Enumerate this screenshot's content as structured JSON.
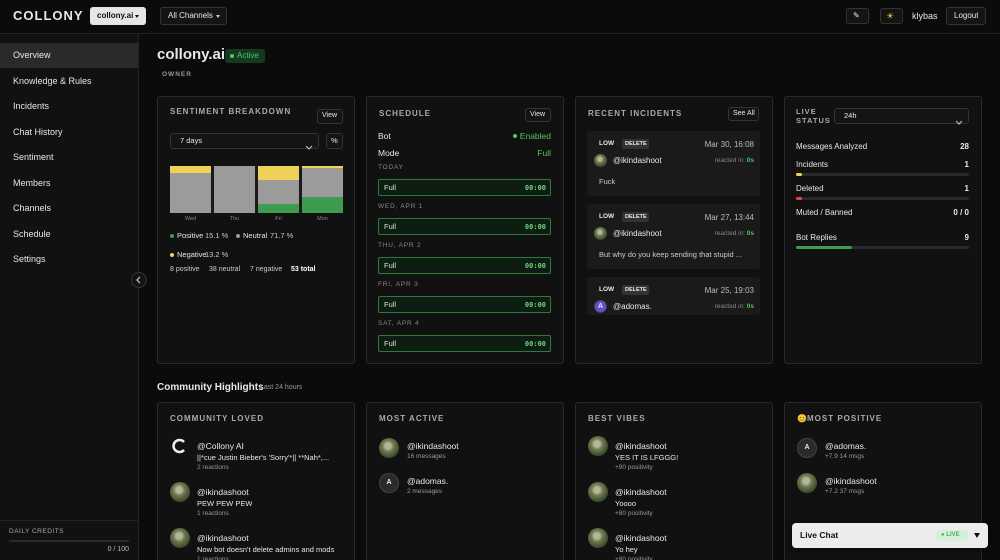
{
  "topbar": {
    "logo": "COLLONY",
    "workspace": "collony.ai",
    "channel_filter": "All Channels",
    "edit_icon": "✎",
    "theme_icon": "☀",
    "user": "klybas",
    "logout": "Logout"
  },
  "sidebar": {
    "items": [
      "Overview",
      "Knowledge & Rules",
      "Incidents",
      "Chat History",
      "Sentiment",
      "Members",
      "Channels",
      "Schedule",
      "Settings"
    ],
    "credits_label": "DAILY CREDITS",
    "credits": "0 / 100"
  },
  "header": {
    "title": "collony.ai",
    "status": "Active",
    "role": "OWNER"
  },
  "sentiment": {
    "title": "SENTIMENT BREAKDOWN",
    "view": "View",
    "range": "7 days",
    "unit_toggle": "%",
    "chart_data": {
      "type": "bar",
      "stacked": true,
      "categories": [
        "Wed",
        "Thu",
        "Fri",
        "Mon"
      ],
      "series": [
        {
          "name": "Positive",
          "color": "#3e9b4f",
          "values": [
            0,
            0,
            19,
            34
          ],
          "share": "15.1 %"
        },
        {
          "name": "Neutral",
          "color": "#9b9b9b",
          "values": [
            85,
            100,
            51,
            62
          ],
          "share": "71.7 %"
        },
        {
          "name": "Negative",
          "color": "#f0d158",
          "values": [
            15,
            0,
            30,
            4
          ],
          "share": "13.2 %"
        }
      ]
    },
    "counts": [
      "8 positive",
      "38 neutral",
      "7 negative",
      "53 total"
    ]
  },
  "schedule": {
    "title": "SCHEDULE",
    "view": "View",
    "bot_label": "Bot",
    "bot_status": "Enabled",
    "mode_label": "Mode",
    "mode": "Full",
    "days": [
      {
        "day": "TODAY",
        "mode": "Full",
        "time": "00:00"
      },
      {
        "day": "WED, APR 1",
        "mode": "Full",
        "time": "00:00"
      },
      {
        "day": "THU, APR 2",
        "mode": "Full",
        "time": "00:00"
      },
      {
        "day": "FRI, APR 3",
        "mode": "Full",
        "time": "00:00"
      },
      {
        "day": "SAT, APR 4",
        "mode": "Full",
        "time": "00:00"
      }
    ]
  },
  "incidents": {
    "title": "RECENT INCIDENTS",
    "see_all": "See All",
    "items": [
      {
        "severity": "LOW",
        "action": "DELETE",
        "time": "Mar 30, 16:08",
        "user": "@ikindashoot",
        "reacted_label": "reacted in:",
        "reacted": "0s",
        "message": "Fuck"
      },
      {
        "severity": "LOW",
        "action": "DELETE",
        "time": "Mar 27, 13:44",
        "user": "@ikindashoot",
        "reacted_label": "reacted in:",
        "reacted": "0s",
        "message": "But why do you keep sending that stupid ..."
      },
      {
        "severity": "LOW",
        "action": "DELETE",
        "time": "Mar 25, 19:03",
        "user": "@adomas.",
        "avatar": "A",
        "reacted_label": "reacted in:",
        "reacted": "0s"
      }
    ]
  },
  "live_status": {
    "title": "LIVE STATUS",
    "range": "24h",
    "metrics": [
      {
        "label": "Messages Analyzed",
        "value": 28
      },
      {
        "label": "Incidents",
        "value": 1,
        "color": "#f0d158"
      },
      {
        "label": "Deleted",
        "value": 1,
        "color": "#e04848"
      },
      {
        "label": "Muted / Banned",
        "value": "0 / 0"
      },
      {
        "label": "Bot Replies",
        "value": 9,
        "color": "#3e9b4f"
      }
    ]
  },
  "highlights": {
    "title": "Community Highlights",
    "subtitle": "Last 24 hours",
    "cards": [
      {
        "title": "COMMUNITY LOVED",
        "items": [
          {
            "user": "@Collony AI",
            "bot": true,
            "text": "||*cue Justin Bieber's 'Sorry'*|| **Nah*,...",
            "meta": "2 reactions"
          },
          {
            "user": "@ikindashoot",
            "text": "PEW PEW PEW",
            "meta": "1 reactions"
          },
          {
            "user": "@ikindashoot",
            "text": "Now bot doesn't delete admins and mods",
            "meta": "1 reactions"
          }
        ]
      },
      {
        "title": "MOST ACTIVE",
        "items": [
          {
            "user": "@ikindashoot",
            "meta": "16 messages"
          },
          {
            "user": "@adomas.",
            "avatar": "A",
            "meta": "2 messages"
          }
        ]
      },
      {
        "title": "BEST VIBES",
        "items": [
          {
            "user": "@ikindashoot",
            "text": "YES IT IS LFGGG!",
            "meta": "+90 positivity"
          },
          {
            "user": "@ikindashoot",
            "text": "Yoooo",
            "meta": "+80 positivity"
          },
          {
            "user": "@ikindashoot",
            "text": "Yo hey",
            "meta": "+80 positivity"
          }
        ]
      },
      {
        "title": "MOST POSITIVE",
        "icon": "😊",
        "items": [
          {
            "user": "@adomas.",
            "avatar": "A",
            "meta": "+7.9 14 msgs"
          },
          {
            "user": "@ikindashoot",
            "meta": "+7.2 37 msgs"
          }
        ]
      }
    ]
  },
  "live_chat": {
    "title": "Live Chat",
    "badge": "● LIVE"
  }
}
